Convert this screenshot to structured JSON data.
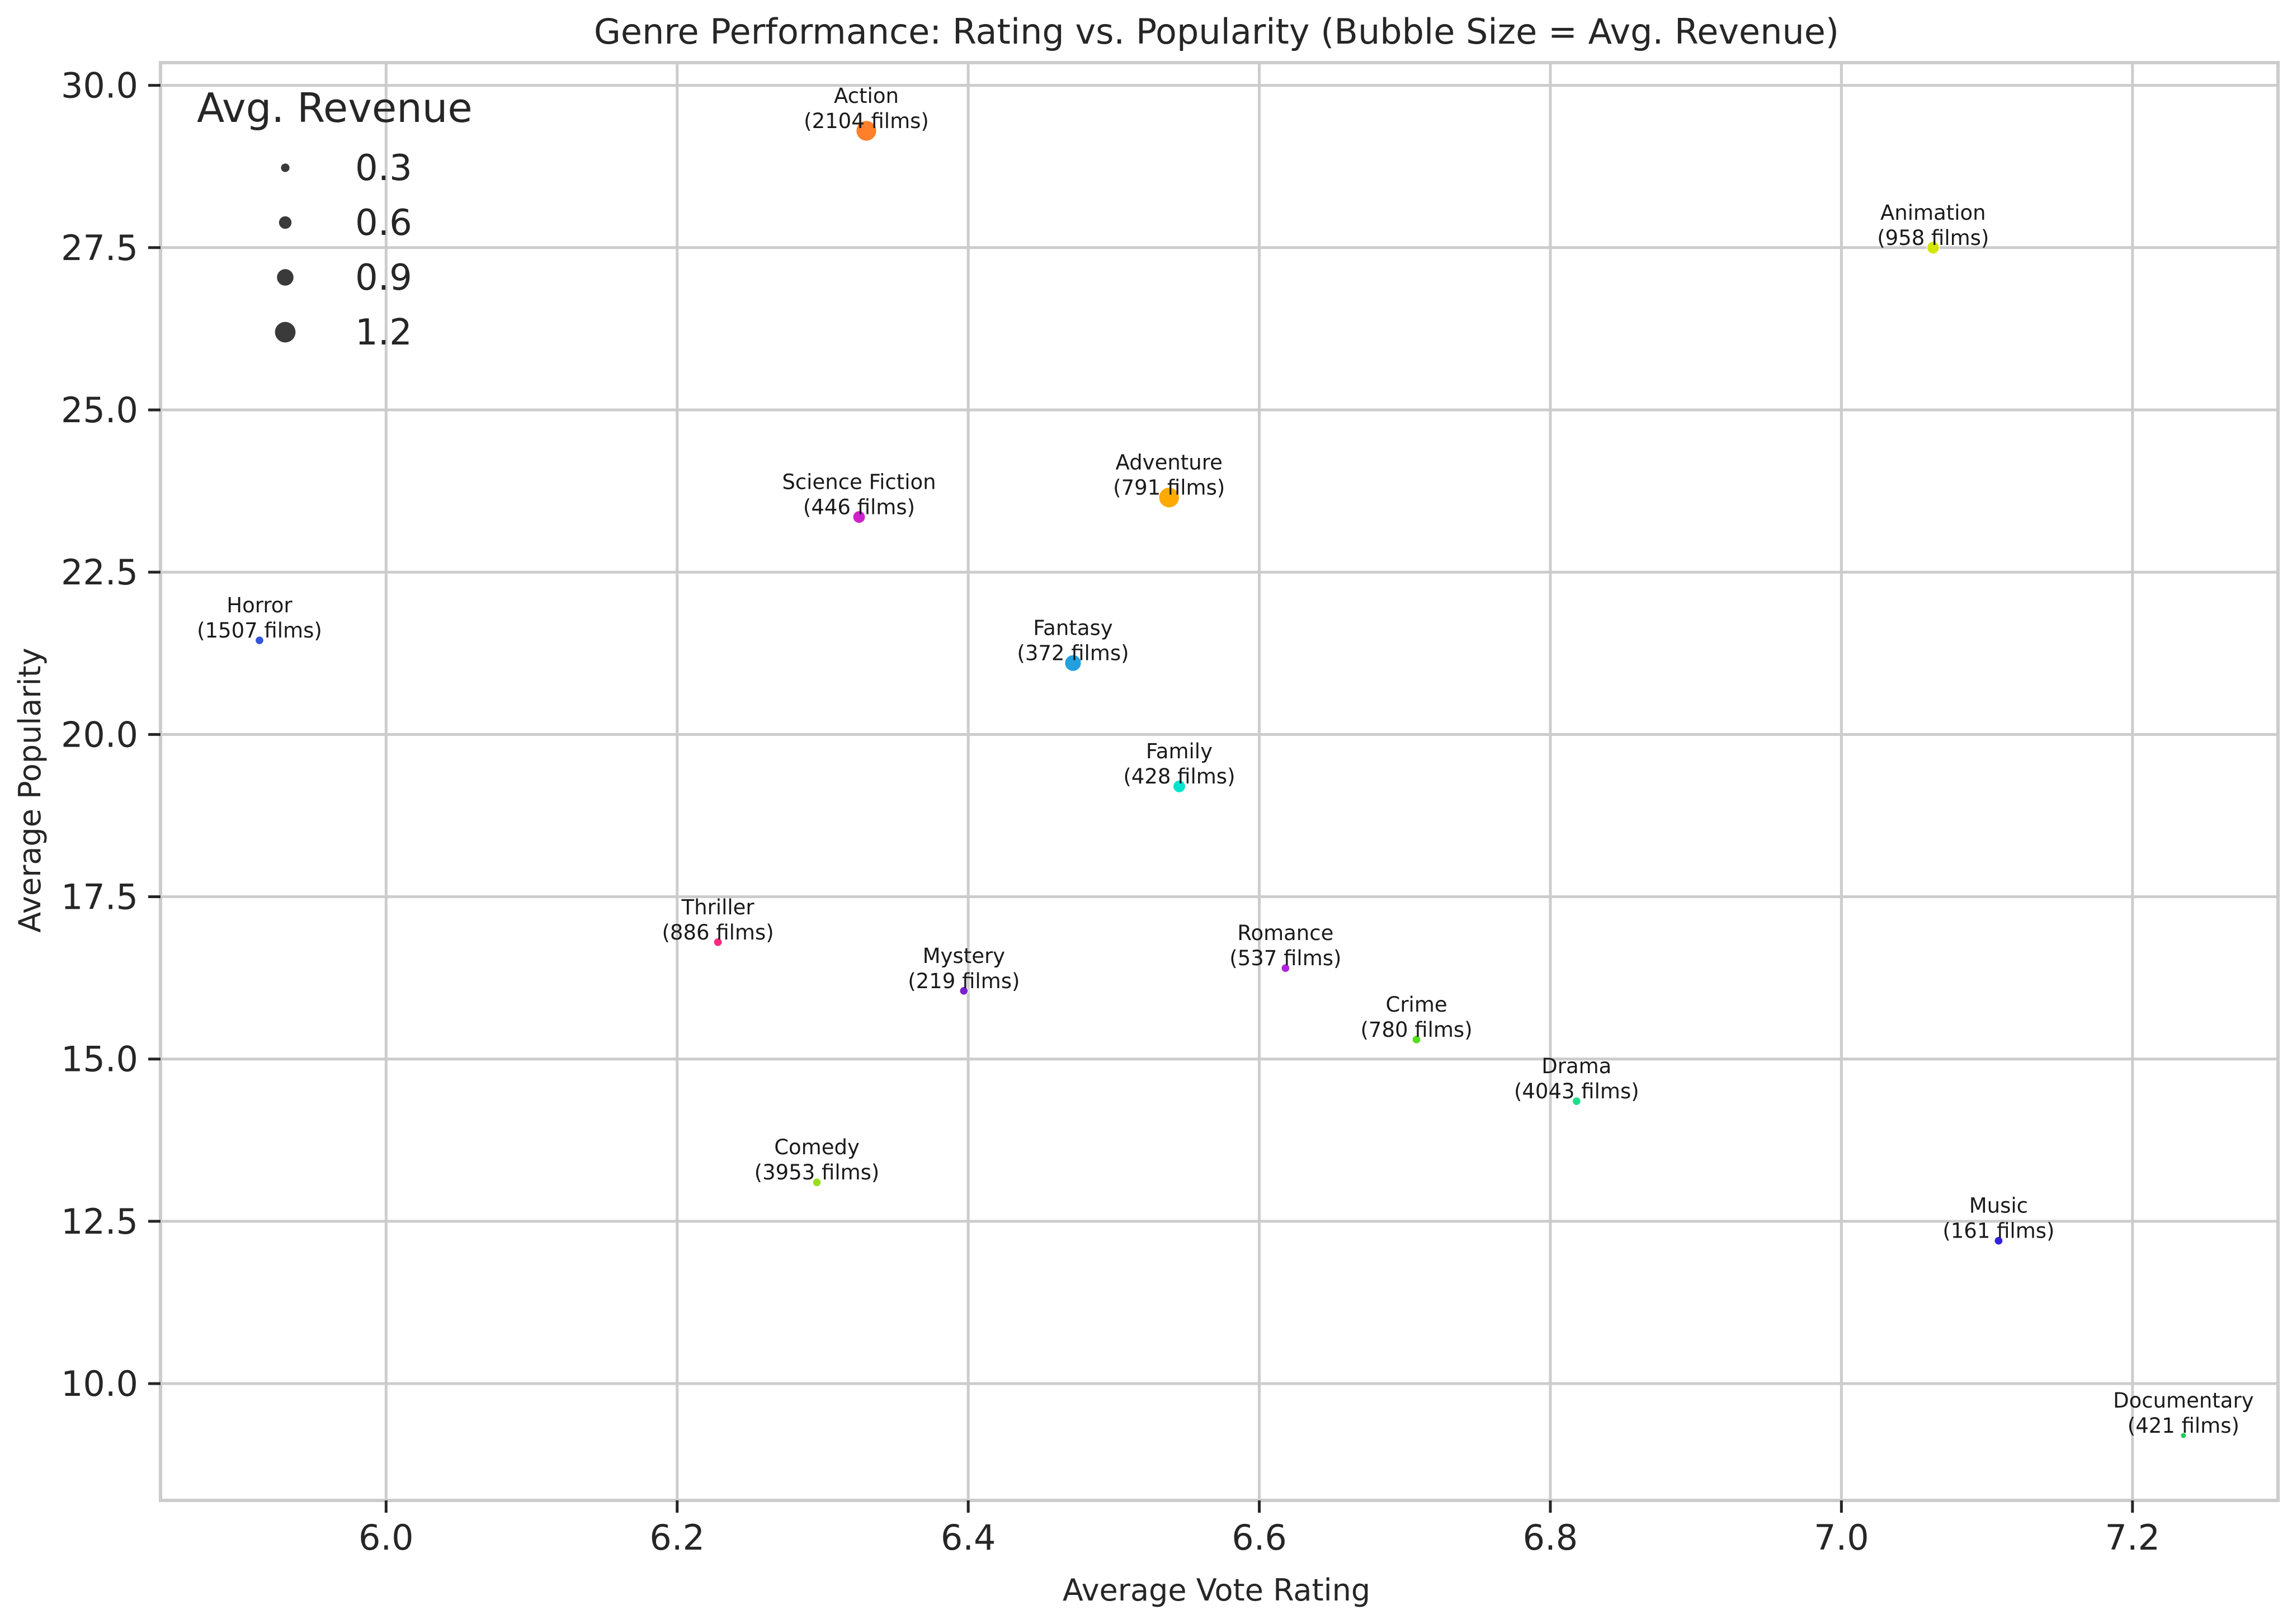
{
  "chart_data": {
    "type": "scatter",
    "title": "Genre Performance: Rating vs. Popularity (Bubble Size = Avg. Revenue)",
    "xlabel": "Average Vote Rating",
    "ylabel": "Average Popularity",
    "xlim": [
      5.845,
      7.3
    ],
    "ylim": [
      8.2,
      30.35
    ],
    "xticks": [
      6.0,
      6.2,
      6.4,
      6.6,
      6.8,
      7.0,
      7.2
    ],
    "xtick_labels": [
      "6.0",
      "6.2",
      "6.4",
      "6.6",
      "6.8",
      "7.0",
      "7.2"
    ],
    "yticks": [
      10.0,
      12.5,
      15.0,
      17.5,
      20.0,
      22.5,
      25.0,
      27.5,
      30.0
    ],
    "ytick_labels": [
      "10.0",
      "12.5",
      "15.0",
      "17.5",
      "20.0",
      "22.5",
      "25.0",
      "27.5",
      "30.0"
    ],
    "grid": true,
    "legend": {
      "title": "Avg. Revenue",
      "placement": "top-left",
      "sizes": [
        0.3,
        0.6,
        0.9,
        1.2
      ],
      "labels": [
        "0.3",
        "0.6",
        "0.9",
        "1.2"
      ]
    },
    "points": [
      {
        "genre": "Action",
        "count_label": "(2104 films)",
        "x": 6.33,
        "y": 29.3,
        "revenue": 1.2,
        "color": "#ff7f2a"
      },
      {
        "genre": "Animation",
        "count_label": "(958 films)",
        "x": 7.063,
        "y": 27.5,
        "revenue": 0.6,
        "color": "#d4e600"
      },
      {
        "genre": "Science Fiction",
        "count_label": "(446 films)",
        "x": 6.325,
        "y": 23.35,
        "revenue": 0.6,
        "color": "#cc22cc"
      },
      {
        "genre": "Adventure",
        "count_label": "(791 films)",
        "x": 6.538,
        "y": 23.65,
        "revenue": 1.2,
        "color": "#ffaa00"
      },
      {
        "genre": "Horror",
        "count_label": "(1507 films)",
        "x": 5.913,
        "y": 21.45,
        "revenue": 0.3,
        "color": "#3355dd"
      },
      {
        "genre": "Fantasy",
        "count_label": "(372 films)",
        "x": 6.472,
        "y": 21.1,
        "revenue": 0.9,
        "color": "#22a0e0"
      },
      {
        "genre": "Family",
        "count_label": "(428 films)",
        "x": 6.545,
        "y": 19.2,
        "revenue": 0.6,
        "color": "#00e5d0"
      },
      {
        "genre": "Thriller",
        "count_label": "(886 films)",
        "x": 6.228,
        "y": 16.8,
        "revenue": 0.3,
        "color": "#ff2a7f"
      },
      {
        "genre": "Mystery",
        "count_label": "(219 films)",
        "x": 6.397,
        "y": 16.05,
        "revenue": 0.3,
        "color": "#7722cc"
      },
      {
        "genre": "Romance",
        "count_label": "(537 films)",
        "x": 6.618,
        "y": 16.4,
        "revenue": 0.3,
        "color": "#b322dd"
      },
      {
        "genre": "Crime",
        "count_label": "(780 films)",
        "x": 6.708,
        "y": 15.3,
        "revenue": 0.3,
        "color": "#55dd22"
      },
      {
        "genre": "Drama",
        "count_label": "(4043 films)",
        "x": 6.818,
        "y": 14.35,
        "revenue": 0.3,
        "color": "#22dd88"
      },
      {
        "genre": "Comedy",
        "count_label": "(3953 films)",
        "x": 6.296,
        "y": 13.1,
        "revenue": 0.3,
        "color": "#99dd22"
      },
      {
        "genre": "Music",
        "count_label": "(161 films)",
        "x": 7.108,
        "y": 12.2,
        "revenue": 0.3,
        "color": "#3322dd"
      },
      {
        "genre": "Documentary",
        "count_label": "(421 films)",
        "x": 7.235,
        "y": 9.2,
        "revenue": 0.1,
        "color": "#22cc55"
      }
    ]
  }
}
